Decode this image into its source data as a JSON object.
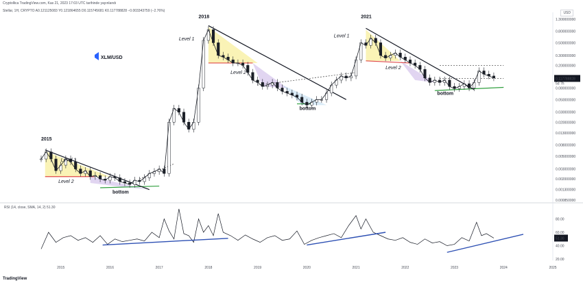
{
  "header": {
    "caption": "Cryptollica TradingView.com, Kas 21, 2023 17:03 UTC tarihinde yayınlandı",
    "symbol_line": "Stellar, 1H, CRYPTO  A0.121125083  Y0.121864655  D0.115745681  K0.117788828  −0.003343759 (−2.76%)"
  },
  "currency": "USD",
  "brand": "TradingView",
  "colors": {
    "candle_up": "#1b1f27",
    "candle_down": "#1b1f27",
    "trend_line": "#131722",
    "support_line": "#2e9e3c",
    "resistance_line": "#e04848",
    "triangle_yellow": "#f6ea7a",
    "triangle_purple": "#c8b2e6",
    "triangle_blue": "#bcdaf0",
    "rsi_trend": "#2c4fb3",
    "price_badge": "#131722"
  },
  "chart_data": [
    {
      "type": "candlestick",
      "title": "XLM/USD",
      "y_scale": "log",
      "ylim": [
        0.00085,
        1.3
      ],
      "y_ticks": [
        "1.300000000",
        "0.800000000",
        "0.500000000",
        "0.300000000",
        "0.200000000",
        "0.117788828",
        "0.080000000",
        "0.050000000",
        "0.030000000",
        "0.020000000",
        "0.013000000",
        "0.008000000",
        "0.005000000",
        "0.003000000",
        "0.002000000",
        "0.001300000",
        "0.000850000"
      ],
      "y_tick_values": [
        1.3,
        0.8,
        0.5,
        0.3,
        0.2,
        0.117788828,
        0.08,
        0.05,
        0.03,
        0.02,
        0.013,
        0.008,
        0.005,
        0.003,
        0.002,
        0.0013,
        0.00085
      ],
      "x_ticks": [
        "2015",
        "2016",
        "2017",
        "2018",
        "2019",
        "2020",
        "2021",
        "2022",
        "2023",
        "2024",
        "2025"
      ],
      "x_tick_values": [
        2015,
        2016,
        2017,
        2018,
        2019,
        2020,
        2021,
        2022,
        2023,
        2024,
        2025
      ],
      "last_price": "0.117788828",
      "countdown": "5d 7h",
      "series": [
        {
          "x": [
            2014.6,
            2014.7,
            2014.8,
            2014.9,
            2015.0,
            2015.1,
            2015.2,
            2015.3,
            2015.4,
            2015.5,
            2015.6,
            2015.7,
            2015.8,
            2015.9,
            2016.0,
            2016.1,
            2016.2,
            2016.3,
            2016.4,
            2016.5,
            2016.6,
            2016.7,
            2016.8,
            2016.9,
            2017.0,
            2017.1,
            2017.2,
            2017.3,
            2017.4,
            2017.5,
            2017.6,
            2017.7,
            2017.8,
            2017.9,
            2018.0,
            2018.1,
            2018.2,
            2018.3,
            2018.4,
            2018.5,
            2018.6,
            2018.7,
            2018.8,
            2018.9,
            2019.0,
            2019.1,
            2019.2,
            2019.3,
            2019.4,
            2019.5,
            2019.6,
            2019.7,
            2019.8,
            2019.9,
            2020.0,
            2020.1,
            2020.2,
            2020.3,
            2020.4,
            2020.5,
            2020.6,
            2020.7,
            2020.8,
            2020.9,
            2021.0,
            2021.1,
            2021.2,
            2021.3,
            2021.4,
            2021.5,
            2021.6,
            2021.7,
            2021.8,
            2021.9,
            2022.0,
            2022.1,
            2022.2,
            2022.3,
            2022.4,
            2022.5,
            2022.6,
            2022.7,
            2022.8,
            2022.9,
            2023.0,
            2023.1,
            2023.2,
            2023.3,
            2023.4,
            2023.5,
            2023.6,
            2023.7,
            2023.8
          ],
          "y": [
            0.0045,
            0.006,
            0.0045,
            0.0028,
            0.0035,
            0.0045,
            0.004,
            0.003,
            0.0025,
            0.0028,
            0.0022,
            0.0023,
            0.002,
            0.0019,
            0.0022,
            0.0021,
            0.0018,
            0.0017,
            0.0016,
            0.0019,
            0.0018,
            0.0021,
            0.0025,
            0.0027,
            0.003,
            0.0025,
            0.02,
            0.035,
            0.03,
            0.02,
            0.015,
            0.02,
            0.08,
            0.55,
            0.85,
            0.5,
            0.3,
            0.28,
            0.25,
            0.22,
            0.22,
            0.2,
            0.15,
            0.11,
            0.1,
            0.085,
            0.09,
            0.1,
            0.08,
            0.07,
            0.065,
            0.06,
            0.055,
            0.045,
            0.04,
            0.045,
            0.05,
            0.05,
            0.065,
            0.09,
            0.11,
            0.13,
            0.12,
            0.13,
            0.25,
            0.5,
            0.45,
            0.6,
            0.5,
            0.3,
            0.27,
            0.3,
            0.33,
            0.28,
            0.25,
            0.22,
            0.2,
            0.17,
            0.12,
            0.1,
            0.11,
            0.1,
            0.11,
            0.085,
            0.078,
            0.085,
            0.095,
            0.08,
            0.1,
            0.16,
            0.14,
            0.13,
            0.12
          ],
          "name": ""
        }
      ],
      "annotations": {
        "years": [
          "2015",
          "2018",
          "2021"
        ],
        "level1": "Level 1",
        "level2": "Level 2",
        "bottom": "bottom"
      }
    },
    {
      "type": "line",
      "title": "RSI (14, close, SMA, 14, 2)  51.30",
      "ylim": [
        20,
        100
      ],
      "y_ticks": [
        "80.00",
        "60.00",
        "51.30",
        "40.00",
        "20.00"
      ],
      "y_tick_values": [
        80,
        60,
        51.3,
        40,
        20
      ],
      "last_value": "51.30",
      "series": [
        {
          "name": "",
          "x": [
            2014.6,
            2014.75,
            2014.9,
            2015.05,
            2015.2,
            2015.35,
            2015.5,
            2015.65,
            2015.8,
            2015.95,
            2016.1,
            2016.25,
            2016.4,
            2016.55,
            2016.7,
            2016.85,
            2017.0,
            2017.1,
            2017.2,
            2017.3,
            2017.4,
            2017.5,
            2017.6,
            2017.7,
            2017.8,
            2017.9,
            2018.0,
            2018.1,
            2018.2,
            2018.3,
            2018.45,
            2018.6,
            2018.75,
            2018.9,
            2019.05,
            2019.2,
            2019.35,
            2019.5,
            2019.65,
            2019.8,
            2019.95,
            2020.1,
            2020.25,
            2020.4,
            2020.55,
            2020.7,
            2020.85,
            2021.0,
            2021.1,
            2021.2,
            2021.35,
            2021.5,
            2021.65,
            2021.8,
            2021.95,
            2022.1,
            2022.25,
            2022.4,
            2022.55,
            2022.7,
            2022.85,
            2023.0,
            2023.15,
            2023.3,
            2023.45,
            2023.55,
            2023.65,
            2023.8
          ],
          "y": [
            35,
            60,
            45,
            52,
            55,
            48,
            52,
            45,
            55,
            42,
            50,
            46,
            48,
            50,
            47,
            60,
            52,
            80,
            62,
            50,
            95,
            58,
            55,
            45,
            80,
            60,
            70,
            55,
            88,
            60,
            55,
            48,
            56,
            50,
            45,
            52,
            55,
            48,
            50,
            62,
            42,
            48,
            52,
            55,
            58,
            52,
            70,
            85,
            65,
            80,
            60,
            55,
            50,
            48,
            52,
            45,
            42,
            50,
            44,
            46,
            40,
            42,
            52,
            47,
            75,
            55,
            58,
            51.3
          ]
        }
      ]
    }
  ]
}
